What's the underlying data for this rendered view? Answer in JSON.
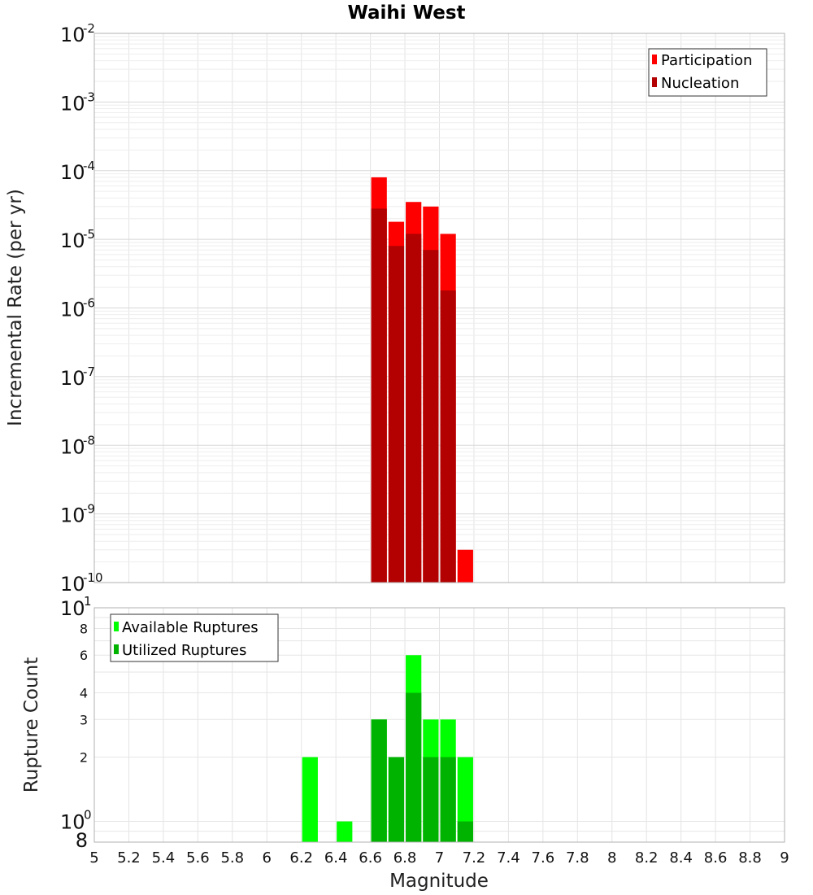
{
  "chart_data": [
    {
      "type": "bar",
      "title": "Waihi West",
      "xlabel": "",
      "ylabel": "Incremental Rate (per yr)",
      "xlim": [
        5,
        9
      ],
      "ylim": [
        1e-10,
        0.01
      ],
      "y_scale": "log",
      "grid": true,
      "legend_position": "top-right",
      "bin_width": 0.1,
      "series": [
        {
          "name": "Participation",
          "color": "#ff0000",
          "x": [
            6.65,
            6.75,
            6.85,
            6.95,
            7.05,
            7.15
          ],
          "values": [
            8e-05,
            1.8e-05,
            3.5e-05,
            3e-05,
            1.2e-05,
            3e-10
          ]
        },
        {
          "name": "Nucleation",
          "color": "#b30000",
          "x": [
            6.65,
            6.75,
            6.85,
            6.95,
            7.05
          ],
          "values": [
            2.8e-05,
            8e-06,
            1.2e-05,
            7e-06,
            1.8e-06
          ]
        }
      ]
    },
    {
      "type": "bar",
      "title": "",
      "xlabel": "Magnitude",
      "ylabel": "Rupture Count",
      "xlim": [
        5,
        9
      ],
      "ylim": [
        0.8,
        10
      ],
      "y_scale": "log",
      "grid": true,
      "legend_position": "top-left",
      "bin_width": 0.1,
      "series": [
        {
          "name": "Available Ruptures",
          "color": "#00ff00",
          "x": [
            6.25,
            6.45,
            6.65,
            6.75,
            6.85,
            6.95,
            7.05,
            7.15
          ],
          "values": [
            2,
            1,
            3,
            2,
            6,
            3,
            3,
            2
          ]
        },
        {
          "name": "Utilized Ruptures",
          "color": "#00b300",
          "x": [
            6.65,
            6.75,
            6.85,
            6.95,
            7.05,
            7.15
          ],
          "values": [
            3,
            2,
            4,
            2,
            2,
            1
          ]
        }
      ]
    }
  ],
  "x_ticks": [
    "5",
    "5.2",
    "5.4",
    "5.6",
    "5.8",
    "6",
    "6.2",
    "6.4",
    "6.6",
    "6.8",
    "7",
    "7.2",
    "7.4",
    "7.6",
    "7.8",
    "8",
    "8.2",
    "8.4",
    "8.6",
    "8.8",
    "9"
  ],
  "top_y_ticks": [
    {
      "base": "10",
      "exp": "-2",
      "value": 0.01
    },
    {
      "base": "10",
      "exp": "-3",
      "value": 0.001
    },
    {
      "base": "10",
      "exp": "-4",
      "value": 0.0001
    },
    {
      "base": "10",
      "exp": "-5",
      "value": 1e-05
    },
    {
      "base": "10",
      "exp": "-6",
      "value": 1e-06
    },
    {
      "base": "10",
      "exp": "-7",
      "value": 1e-07
    },
    {
      "base": "10",
      "exp": "-8",
      "value": 1e-08
    },
    {
      "base": "10",
      "exp": "-9",
      "value": 1e-09
    },
    {
      "base": "10",
      "exp": "-10",
      "value": 1e-10
    }
  ],
  "bottom_y_ticks": [
    {
      "base": "10",
      "exp": "1",
      "value": 10
    },
    {
      "base": "10",
      "exp": "0",
      "value": 1
    }
  ],
  "bottom_y_minor_ticks": [
    {
      "label": "8",
      "value": 8
    },
    {
      "label": "6",
      "value": 6
    },
    {
      "label": "4",
      "value": 4
    },
    {
      "label": "3",
      "value": 3
    },
    {
      "label": "2",
      "value": 2
    },
    {
      "label": "8",
      "value": 0.8
    }
  ]
}
